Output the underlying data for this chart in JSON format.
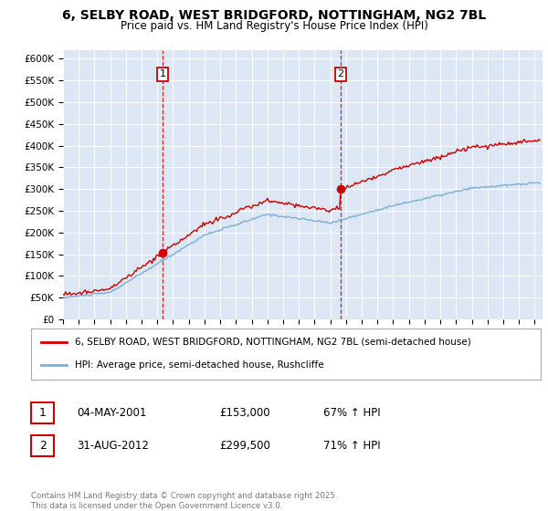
{
  "title_line1": "6, SELBY ROAD, WEST BRIDGFORD, NOTTINGHAM, NG2 7BL",
  "title_line2": "Price paid vs. HM Land Registry's House Price Index (HPI)",
  "ylabel_ticks": [
    "£0",
    "£50K",
    "£100K",
    "£150K",
    "£200K",
    "£250K",
    "£300K",
    "£350K",
    "£400K",
    "£450K",
    "£500K",
    "£550K",
    "£600K"
  ],
  "ylim": [
    0,
    620000
  ],
  "xlim_start": 1995.0,
  "xlim_end": 2025.5,
  "background_color": "#ffffff",
  "plot_bg_color": "#dce6f5",
  "grid_color": "#ffffff",
  "sale1_date": 2001.34,
  "sale1_price": 153000,
  "sale2_date": 2012.66,
  "sale2_price": 299500,
  "legend_line1": "6, SELBY ROAD, WEST BRIDGFORD, NOTTINGHAM, NG2 7BL (semi-detached house)",
  "legend_line2": "HPI: Average price, semi-detached house, Rushcliffe",
  "ann1": [
    "1",
    "04-MAY-2001",
    "£153,000",
    "67% ↑ HPI"
  ],
  "ann2": [
    "2",
    "31-AUG-2012",
    "£299,500",
    "71% ↑ HPI"
  ],
  "footer": "Contains HM Land Registry data © Crown copyright and database right 2025.\nThis data is licensed under the Open Government Licence v3.0.",
  "line_color_red": "#cc0000",
  "line_color_blue": "#7bafd4",
  "sale_box_color": "#cc0000"
}
